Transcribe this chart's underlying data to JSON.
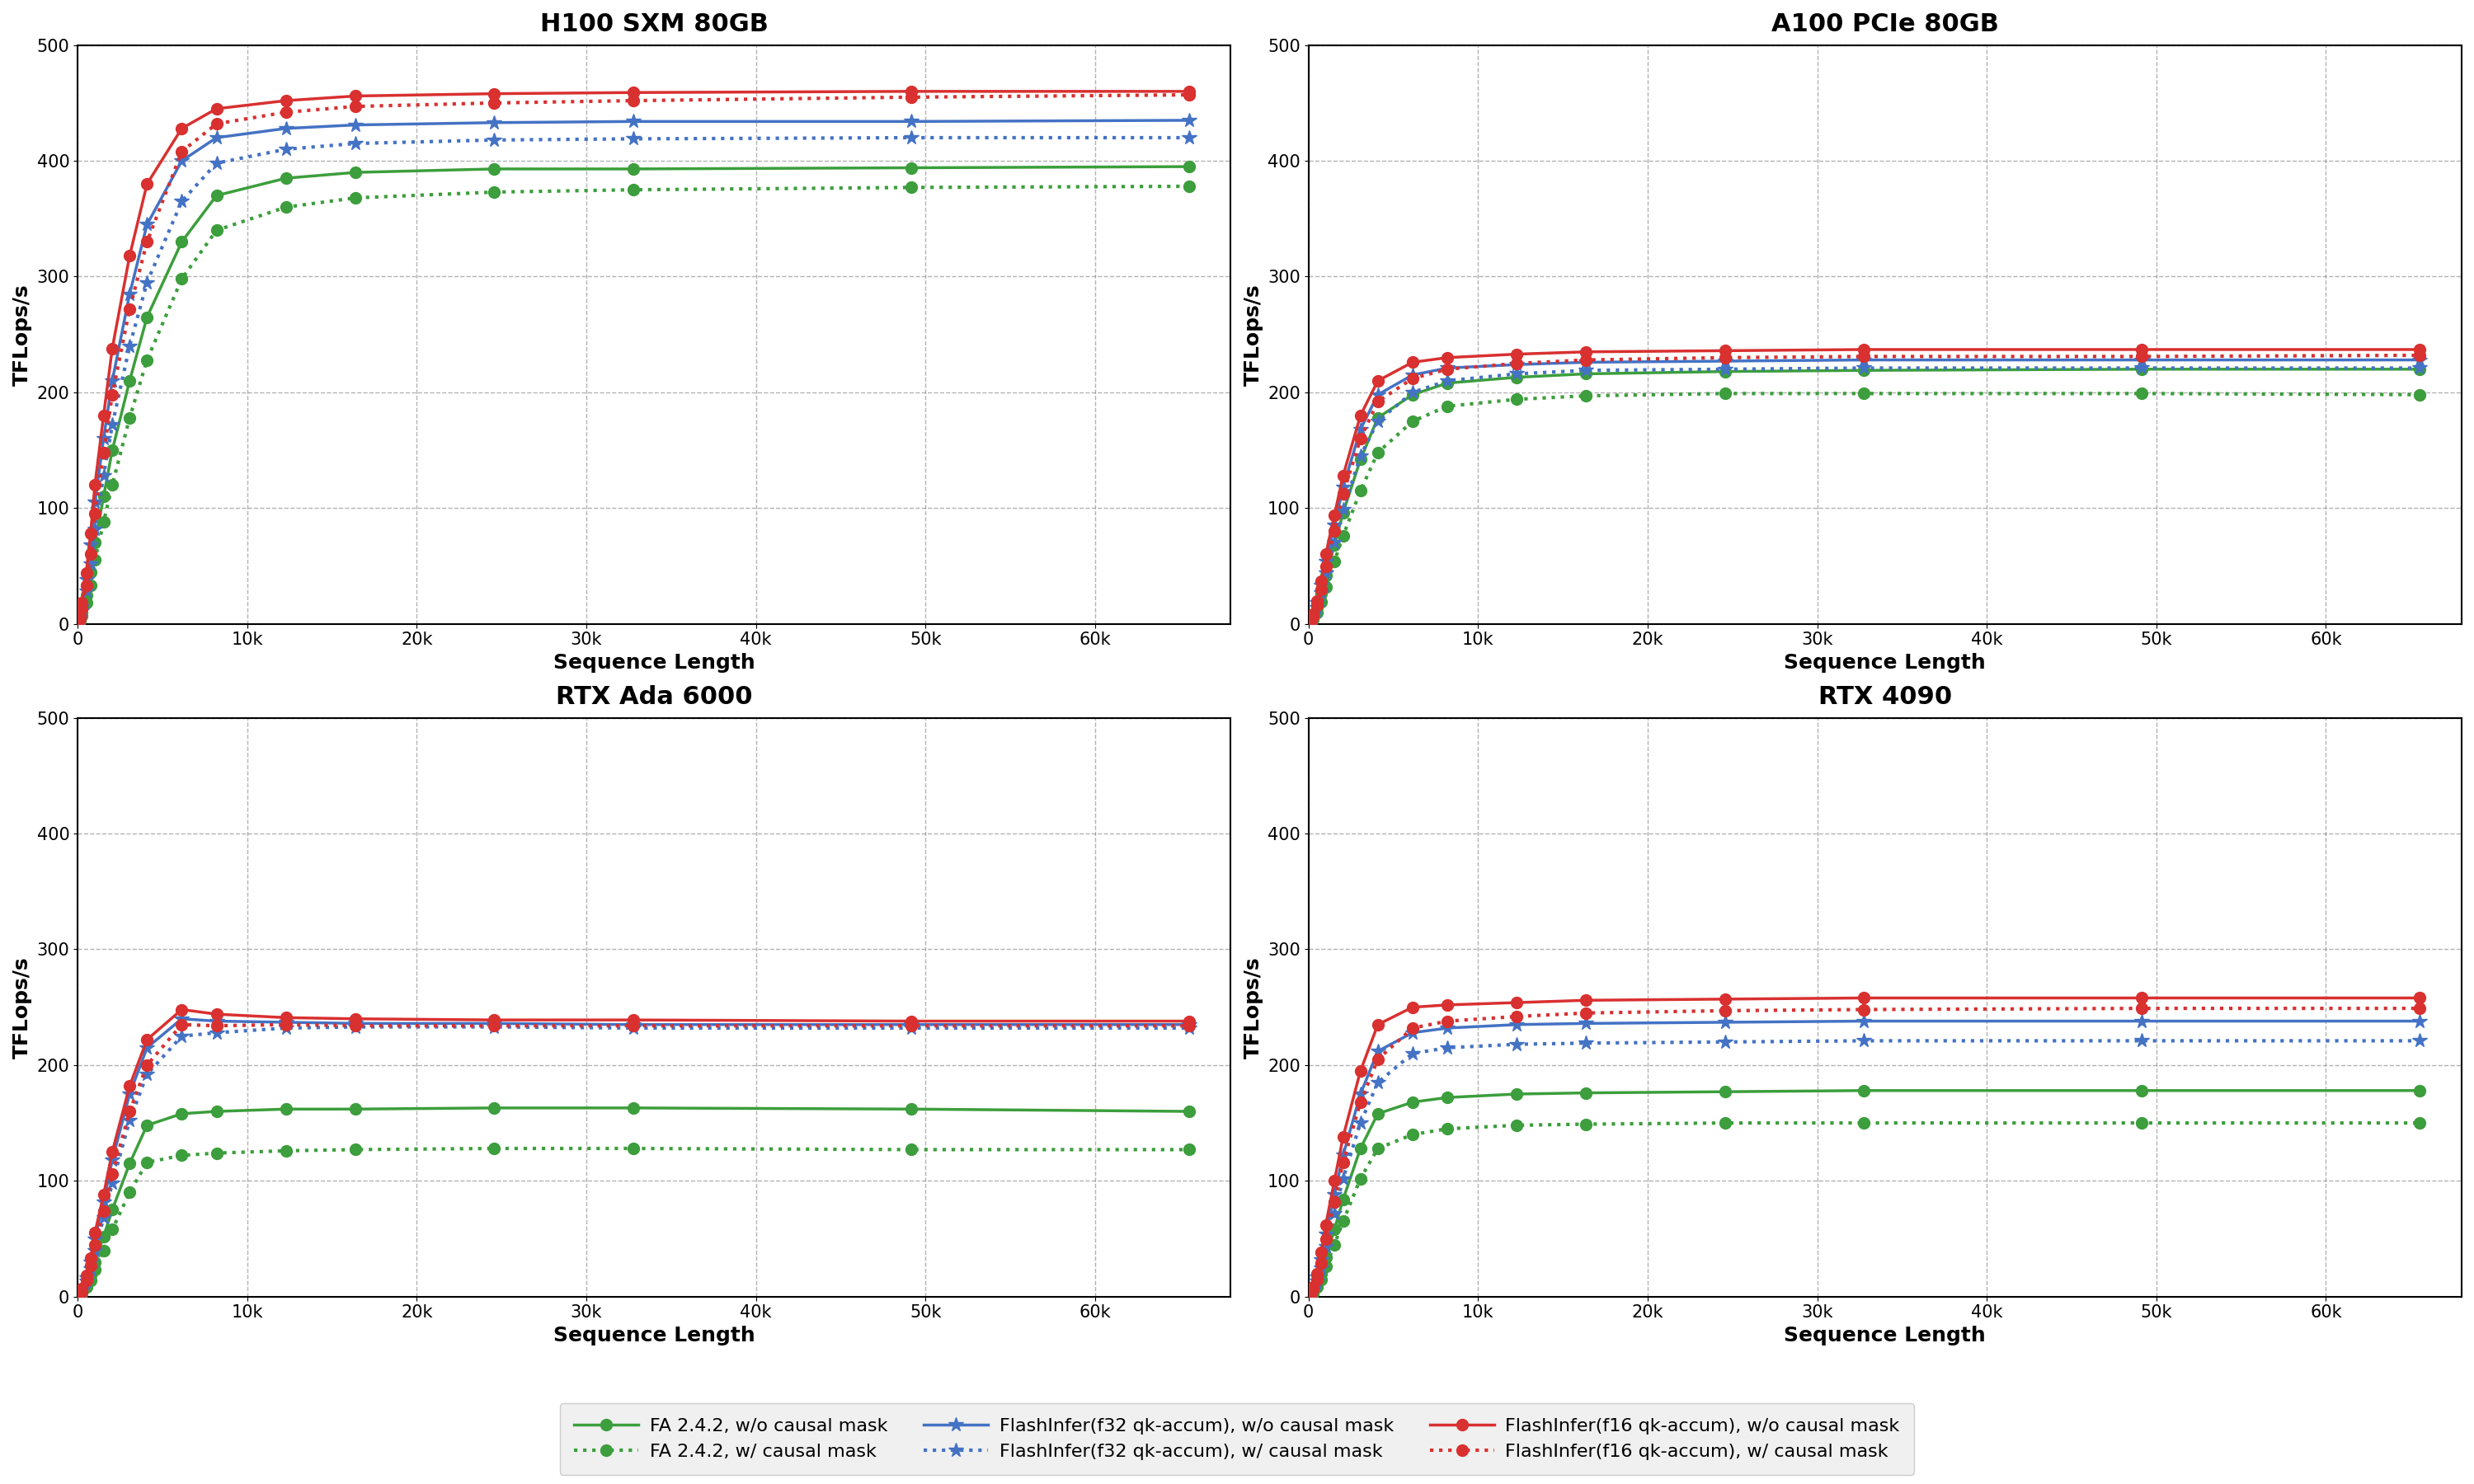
{
  "titles": [
    "H100 SXM 80GB",
    "A100 PCIe 80GB",
    "RTX Ada 6000",
    "RTX 4090"
  ],
  "xlabel": "Sequence Length",
  "ylabel": "TFLops/s",
  "ylim": [
    0,
    500
  ],
  "yticks": [
    0,
    100,
    200,
    300,
    400,
    500
  ],
  "xlim": [
    0,
    68000
  ],
  "xtick_vals": [
    0,
    10000,
    20000,
    30000,
    40000,
    50000,
    60000
  ],
  "xtick_labels": [
    "0",
    "10k",
    "20k",
    "30k",
    "40k",
    "50k",
    "60k"
  ],
  "x_values": [
    64,
    128,
    256,
    512,
    768,
    1024,
    1536,
    2048,
    3072,
    4096,
    6144,
    8192,
    12288,
    16384,
    24576,
    32768,
    49152,
    65536
  ],
  "colors": {
    "green": "#3c9e3c",
    "blue": "#4472c4",
    "red": "#d93030"
  },
  "series": {
    "H100 SXM 80GB": {
      "fa_wo": [
        2,
        4,
        10,
        25,
        45,
        70,
        110,
        150,
        210,
        265,
        330,
        370,
        385,
        390,
        393,
        393,
        394,
        395
      ],
      "fa_w": [
        1,
        3,
        7,
        18,
        33,
        55,
        88,
        120,
        178,
        228,
        298,
        340,
        360,
        368,
        373,
        375,
        377,
        378
      ],
      "fi32_wo": [
        3,
        6,
        15,
        38,
        68,
        105,
        160,
        210,
        285,
        345,
        400,
        420,
        428,
        431,
        433,
        434,
        434,
        435
      ],
      "fi32_w": [
        2,
        4,
        11,
        28,
        52,
        82,
        128,
        172,
        240,
        295,
        365,
        398,
        410,
        415,
        418,
        419,
        420,
        420
      ],
      "fi16_wo": [
        3,
        7,
        18,
        44,
        78,
        120,
        180,
        238,
        318,
        380,
        428,
        445,
        452,
        456,
        458,
        459,
        460,
        460
      ],
      "fi16_w": [
        2,
        5,
        13,
        33,
        60,
        95,
        148,
        198,
        272,
        330,
        408,
        432,
        442,
        447,
        450,
        452,
        455,
        457
      ]
    },
    "A100 PCIe 80GB": {
      "fa_wo": [
        1,
        2,
        5,
        14,
        26,
        42,
        68,
        96,
        142,
        178,
        198,
        208,
        213,
        216,
        218,
        219,
        220,
        220
      ],
      "fa_w": [
        1,
        2,
        4,
        10,
        19,
        32,
        54,
        76,
        115,
        148,
        175,
        188,
        194,
        197,
        199,
        199,
        199,
        198
      ],
      "fi32_wo": [
        1,
        3,
        7,
        18,
        33,
        54,
        85,
        118,
        168,
        198,
        215,
        221,
        224,
        226,
        227,
        228,
        228,
        228
      ],
      "fi32_w": [
        1,
        2,
        5,
        14,
        27,
        44,
        70,
        99,
        145,
        175,
        200,
        210,
        216,
        219,
        220,
        221,
        221,
        221
      ],
      "fi16_wo": [
        1,
        3,
        8,
        20,
        37,
        60,
        94,
        128,
        180,
        210,
        226,
        230,
        233,
        235,
        236,
        237,
        237,
        237
      ],
      "fi16_w": [
        1,
        2,
        6,
        16,
        30,
        50,
        80,
        112,
        160,
        192,
        212,
        220,
        225,
        228,
        230,
        231,
        231,
        232
      ]
    },
    "RTX Ada 6000": {
      "fa_wo": [
        1,
        2,
        4,
        10,
        18,
        30,
        52,
        75,
        115,
        148,
        158,
        160,
        162,
        162,
        163,
        163,
        162,
        160
      ],
      "fa_w": [
        1,
        1,
        3,
        8,
        14,
        23,
        40,
        58,
        90,
        116,
        122,
        124,
        126,
        127,
        128,
        128,
        127,
        127
      ],
      "fi32_wo": [
        1,
        2,
        6,
        16,
        30,
        50,
        82,
        118,
        175,
        215,
        240,
        238,
        237,
        236,
        236,
        235,
        235,
        235
      ],
      "fi32_w": [
        1,
        2,
        5,
        13,
        24,
        40,
        68,
        98,
        152,
        192,
        225,
        228,
        232,
        233,
        233,
        232,
        232,
        232
      ],
      "fi16_wo": [
        1,
        2,
        7,
        18,
        33,
        55,
        88,
        125,
        182,
        222,
        248,
        244,
        241,
        240,
        239,
        239,
        238,
        238
      ],
      "fi16_w": [
        1,
        2,
        5,
        14,
        27,
        45,
        74,
        106,
        160,
        200,
        235,
        234,
        235,
        234,
        234,
        234,
        234,
        234
      ]
    },
    "RTX 4090": {
      "fa_wo": [
        1,
        2,
        4,
        11,
        20,
        34,
        58,
        84,
        128,
        158,
        168,
        172,
        175,
        176,
        177,
        178,
        178,
        178
      ],
      "fa_w": [
        1,
        1,
        3,
        8,
        15,
        26,
        45,
        65,
        102,
        128,
        140,
        145,
        148,
        149,
        150,
        150,
        150,
        150
      ],
      "fi32_wo": [
        1,
        2,
        6,
        17,
        32,
        54,
        88,
        122,
        175,
        212,
        228,
        232,
        235,
        236,
        237,
        238,
        238,
        238
      ],
      "fi32_w": [
        1,
        2,
        5,
        13,
        25,
        43,
        72,
        102,
        150,
        185,
        210,
        215,
        218,
        219,
        220,
        221,
        221,
        221
      ],
      "fi16_wo": [
        1,
        3,
        8,
        20,
        38,
        62,
        100,
        138,
        195,
        235,
        250,
        252,
        254,
        256,
        257,
        258,
        258,
        258
      ],
      "fi16_w": [
        1,
        2,
        6,
        15,
        29,
        50,
        82,
        116,
        168,
        205,
        232,
        238,
        242,
        245,
        247,
        248,
        249,
        249
      ]
    }
  }
}
